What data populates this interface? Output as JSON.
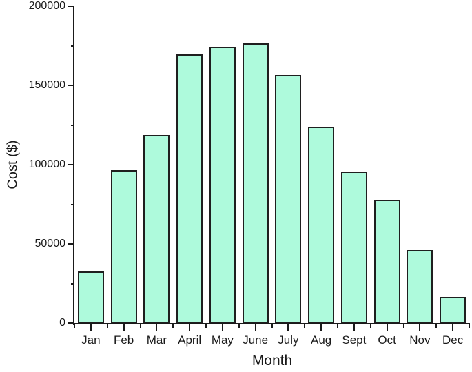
{
  "chart_data": {
    "type": "bar",
    "title": "",
    "xlabel": "Month",
    "ylabel": "Cost ($)",
    "categories": [
      "Jan",
      "Feb",
      "Mar",
      "April",
      "May",
      "June",
      "July",
      "Aug",
      "Sept",
      "Oct",
      "Nov",
      "Dec"
    ],
    "values": [
      32500,
      96500,
      118500,
      169500,
      174500,
      176500,
      156500,
      124000,
      95500,
      78000,
      46000,
      16500
    ],
    "ylim": [
      0,
      200000
    ],
    "y_major_ticks": [
      0,
      50000,
      100000,
      150000,
      200000
    ],
    "y_tick_labels": [
      "0",
      "50000",
      "100000",
      "150000",
      "200000"
    ],
    "y_minor_step": 25000,
    "grid": false,
    "legend": null,
    "bar_fill_color": "#aefadc",
    "bar_border_color": "#1f1f1f",
    "axis_color": "#1a1a1a",
    "text_color": "#1a1a1a"
  }
}
